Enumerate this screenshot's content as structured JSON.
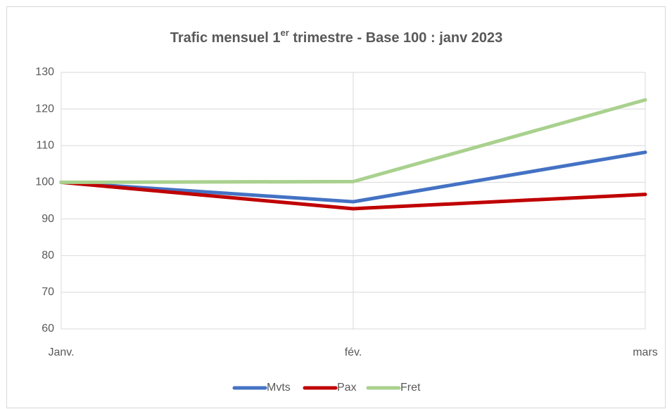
{
  "chart_data": {
    "type": "line",
    "title": [
      "Trafic mensuel 1",
      "er",
      " trimestre - Base 100 : janv 2023"
    ],
    "categories": [
      "Janv.",
      "fév.",
      "mars"
    ],
    "series": [
      {
        "name": "Mvts",
        "color": "#4472c4",
        "values": [
          100,
          94.7,
          108.2
        ]
      },
      {
        "name": "Pax",
        "color": "#c00000",
        "values": [
          100,
          92.8,
          96.7
        ]
      },
      {
        "name": "Fret",
        "color": "#a9d18e",
        "values": [
          100,
          100.2,
          122.5
        ]
      }
    ],
    "ylim": [
      60,
      130
    ],
    "yticks": [
      60,
      70,
      80,
      90,
      100,
      110,
      120,
      130
    ],
    "grid": true,
    "legend": "bottom"
  }
}
